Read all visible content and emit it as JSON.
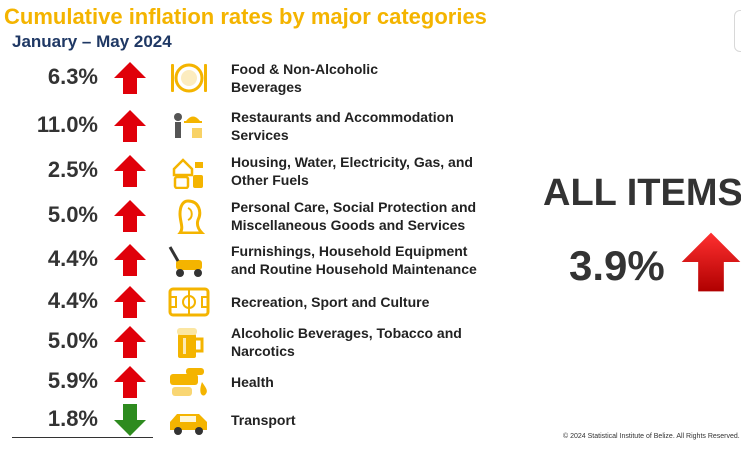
{
  "title": "Cumulative inflation rates by major categories",
  "subtitle": "January – May 2024",
  "colors": {
    "title": "#f4b400",
    "subtitle": "#1f3864",
    "up": "#e0000a",
    "down": "#2e8b1f",
    "icon": "#f4b400"
  },
  "chart_data": {
    "type": "table",
    "title": "Cumulative inflation rates by major categories",
    "subtitle": "January – May 2024",
    "rows": [
      {
        "category": "Food & Non-Alcoholic Beverages",
        "value": 6.3,
        "value_label": "6.3%",
        "direction": "up",
        "icon": "plate-cutlery-icon"
      },
      {
        "category": "Restaurants and Accommodation Services",
        "value": 11.0,
        "value_label": "11.0%",
        "direction": "up",
        "icon": "waiter-icon"
      },
      {
        "category": "Housing, Water, Electricity, Gas, and Other Fuels",
        "value": 2.5,
        "value_label": "2.5%",
        "direction": "up",
        "icon": "house-utilities-icon"
      },
      {
        "category": "Personal Care, Social Protection and Miscellaneous Goods and Services",
        "value": 5.0,
        "value_label": "5.0%",
        "direction": "up",
        "icon": "woman-head-icon"
      },
      {
        "category": "Furnishings, Household Equipment and Routine Household Maintenance",
        "value": 4.4,
        "value_label": "4.4%",
        "direction": "up",
        "icon": "lawn-mower-icon"
      },
      {
        "category": "Recreation, Sport and Culture",
        "value": 4.4,
        "value_label": "4.4%",
        "direction": "up",
        "icon": "sports-field-icon"
      },
      {
        "category": "Alcoholic Beverages, Tobacco and Narcotics",
        "value": 5.0,
        "value_label": "5.0%",
        "direction": "up",
        "icon": "beer-mug-icon"
      },
      {
        "category": "Health",
        "value": 5.9,
        "value_label": "5.9%",
        "direction": "up",
        "icon": "hand-drop-icon"
      },
      {
        "category": "Transport",
        "value": 1.8,
        "value_label": "1.8%",
        "direction": "down",
        "icon": "car-icon"
      }
    ],
    "all_items": {
      "label": "ALL ITEMS",
      "value": 3.9,
      "value_label": "3.9%",
      "direction": "up"
    }
  },
  "copyright": "© 2024 Statistical Institute of Belize. All Rights Reserved."
}
